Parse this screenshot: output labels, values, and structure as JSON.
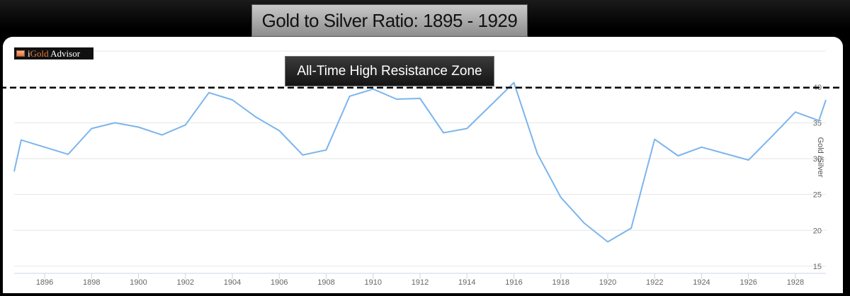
{
  "title": "Gold to Silver Ratio: 1895 - 1929",
  "annotation": "All-Time High Resistance Zone",
  "logo": {
    "prefix": "i",
    "brand": "Gold",
    "suffix": " Advisor",
    "icon": "igold-logo-icon"
  },
  "colors": {
    "line": "#7cb5ec",
    "grid": "#e6e6e6",
    "resistance": "#000000"
  },
  "chart_data": {
    "type": "line",
    "title": "Gold to Silver Ratio: 1895 - 1929",
    "ylabel": "Gold /Silver",
    "xlabel": "",
    "xlim": [
      1894.7,
      1929.3
    ],
    "ylim": [
      14,
      46
    ],
    "x_ticks": [
      1896,
      1898,
      1900,
      1902,
      1904,
      1906,
      1908,
      1910,
      1912,
      1914,
      1916,
      1918,
      1920,
      1922,
      1924,
      1926,
      1928
    ],
    "y_ticks": [
      15,
      20,
      25,
      30,
      35,
      40
    ],
    "grid": true,
    "legend": "none",
    "resistance_level": 39.9,
    "series": [
      {
        "x": [
          1894.7,
          1895,
          1896,
          1897,
          1898,
          1899,
          1900,
          1901,
          1902,
          1903,
          1904,
          1905,
          1906,
          1907,
          1908,
          1909,
          1910,
          1911,
          1912,
          1913,
          1914,
          1915,
          1916,
          1917,
          1918,
          1919,
          1920,
          1921,
          1922,
          1923,
          1924,
          1925,
          1926,
          1927,
          1928,
          1929,
          1929.3
        ],
        "values": [
          28.2,
          32.6,
          31.6,
          30.6,
          34.2,
          35.0,
          34.4,
          33.3,
          34.7,
          39.2,
          38.2,
          35.8,
          33.9,
          30.5,
          31.2,
          38.7,
          39.7,
          38.3,
          38.4,
          33.6,
          34.2,
          37.4,
          40.6,
          30.7,
          24.6,
          21.0,
          18.4,
          20.3,
          32.7,
          30.4,
          31.6,
          30.7,
          29.8,
          33.1,
          36.5,
          35.3,
          38.2
        ]
      }
    ]
  }
}
